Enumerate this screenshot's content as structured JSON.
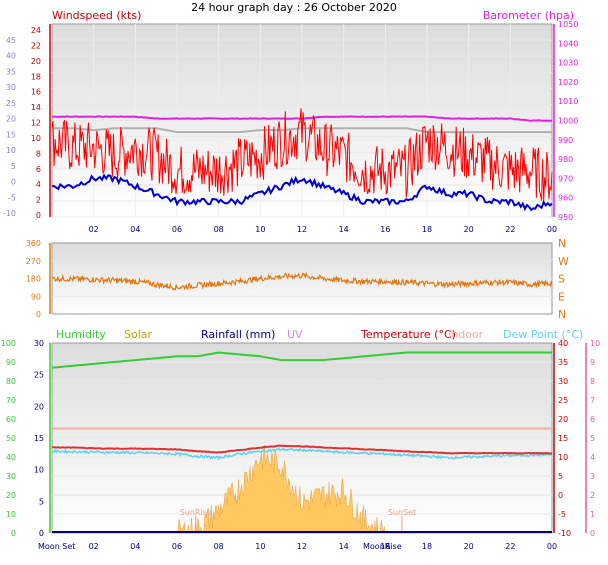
{
  "title": "24 hour graph day : 26 October 2020",
  "colors": {
    "wind": "#ff0000",
    "wind_avg": "#0000cc",
    "baro": "#e020e0",
    "baro_ref": "#b0b0b0",
    "dir": "#e07810",
    "humidity": "#33cc33",
    "solar": "#c8a000",
    "solar_fill": "#ffc860",
    "rain": "#000080",
    "uv": "#e080e0",
    "temp": "#e03030",
    "indoor": "#f0b0a0",
    "dew": "#60d0f0",
    "axis_left_top": "#cc0000",
    "axis_left_bottom": "#33cc33",
    "axis_right_bottom_inner": "#cc0000",
    "axis_right_bottom_outer": "#e060a0"
  },
  "x_ticks": [
    "02",
    "04",
    "06",
    "08",
    "10",
    "12",
    "14",
    "16",
    "18",
    "20",
    "22",
    "00"
  ],
  "moon_labels": {
    "left": "Moon Set",
    "right": "MoonRise"
  },
  "chart_data": [
    {
      "type": "line",
      "name": "wind-barometer",
      "left_title": "Windspeed (kts)",
      "right_title": "Barometer (hpa)",
      "left_ticks": [
        "24",
        "22",
        "20",
        "18",
        "16",
        "14",
        "12",
        "10",
        "8",
        "6",
        "4",
        "2",
        "0"
      ],
      "left_outer_ticks": [
        "45",
        "40",
        "35",
        "30",
        "25",
        "20",
        "15",
        "10",
        "5",
        "0",
        "-5",
        "-10"
      ],
      "right_ticks": [
        "1050",
        "1040",
        "1030",
        "1020",
        "1010",
        "1000",
        "990",
        "980",
        "970",
        "960",
        "950"
      ],
      "ylim_left": [
        0,
        25
      ],
      "ylim_right": [
        950,
        1050
      ],
      "hours": [
        0,
        1,
        2,
        3,
        4,
        5,
        6,
        7,
        8,
        9,
        10,
        11,
        12,
        13,
        14,
        15,
        16,
        17,
        18,
        19,
        20,
        21,
        22,
        23,
        24
      ],
      "series": [
        {
          "values": [
            10,
            9,
            9,
            8,
            9,
            8,
            6,
            6,
            6,
            7,
            8,
            10,
            11,
            9,
            8,
            6,
            6,
            6,
            10,
            9,
            8,
            7,
            6,
            6,
            5
          ]
        },
        {
          "values": [
            4,
            4,
            5,
            5,
            4,
            3,
            2,
            2,
            2,
            2,
            3,
            4,
            5,
            4,
            3,
            2,
            2,
            2,
            4,
            3,
            3,
            2,
            2,
            1,
            2
          ]
        },
        {
          "values": [
            1002,
            1002,
            1002,
            1002,
            1002,
            1001,
            1001,
            1001,
            1001,
            1001,
            1001,
            1001,
            1001,
            1002,
            1002,
            1002,
            1002,
            1002,
            1002,
            1001,
            1001,
            1001,
            1001,
            1000,
            1000
          ]
        },
        {
          "values": [
            996,
            996,
            995,
            996,
            996,
            996,
            994,
            994,
            994,
            994,
            995,
            995,
            996,
            996,
            996,
            996,
            996,
            996,
            994,
            994,
            994,
            994,
            994,
            994,
            994
          ]
        }
      ]
    },
    {
      "type": "line",
      "name": "wind-direction",
      "left_ticks": [
        "360",
        "270",
        "180",
        "90",
        "0"
      ],
      "right_labels": [
        "N",
        "W",
        "S",
        "E",
        "N"
      ],
      "ylim": [
        0,
        360
      ],
      "hours": [
        0,
        1,
        2,
        3,
        4,
        5,
        6,
        7,
        8,
        9,
        10,
        11,
        12,
        13,
        14,
        15,
        16,
        17,
        18,
        19,
        20,
        21,
        22,
        23,
        24
      ],
      "series": [
        {
          "values": [
            180,
            178,
            175,
            170,
            165,
            150,
            135,
            145,
            155,
            165,
            180,
            190,
            195,
            180,
            170,
            165,
            165,
            160,
            155,
            150,
            155,
            160,
            160,
            150,
            155
          ]
        }
      ]
    },
    {
      "type": "line",
      "name": "temperature-humidity-solar",
      "legend": [
        "Humidity",
        "Solar",
        "Rainfall (mm)",
        "UV",
        "Temperature (°C)",
        "Indoor",
        "Dew Point (°C)"
      ],
      "left_outer_ticks": [
        "100",
        "90",
        "80",
        "70",
        "60",
        "50",
        "40",
        "30",
        "20",
        "10",
        "0"
      ],
      "left_inner_ticks": [
        "30",
        "25",
        "20",
        "15",
        "10",
        "5",
        "0"
      ],
      "right_inner_ticks": [
        "40",
        "35",
        "30",
        "25",
        "20",
        "15",
        "10",
        "5",
        "0",
        "-5",
        "-10"
      ],
      "right_outer_ticks": [
        "10",
        "9",
        "8",
        "7",
        "6",
        "5",
        "4",
        "3",
        "2",
        "1",
        "0"
      ],
      "ylim_temp": [
        -10,
        40
      ],
      "ylim_humidity": [
        0,
        100
      ],
      "hours": [
        0,
        1,
        2,
        3,
        4,
        5,
        6,
        7,
        8,
        9,
        10,
        11,
        12,
        13,
        14,
        15,
        16,
        17,
        18,
        19,
        20,
        21,
        22,
        23,
        24
      ],
      "sun_labels": {
        "rise": "SunRise",
        "set": "SunSet"
      },
      "sunrise_hour": 6.9,
      "sunset_hour": 16.8,
      "series": [
        {
          "values": [
            87,
            88,
            89,
            90,
            91,
            92,
            93,
            93,
            95,
            94,
            93,
            91,
            91,
            91,
            92,
            93,
            94,
            95,
            95,
            95,
            95,
            95,
            95,
            95,
            95
          ]
        },
        {
          "values": [
            12.5,
            12.5,
            12.3,
            12.2,
            12.2,
            12.1,
            12,
            11.5,
            11.2,
            11.8,
            12.5,
            13,
            12.8,
            12.5,
            12.3,
            12,
            11.8,
            11.5,
            11.3,
            11,
            11,
            11,
            11,
            11,
            11
          ]
        },
        {
          "values": [
            11.5,
            11.4,
            11.3,
            11.2,
            11.1,
            11,
            10.8,
            10.2,
            9.8,
            10.8,
            11.5,
            12,
            11.8,
            11.5,
            11.2,
            11,
            10.8,
            10.5,
            10.2,
            9.8,
            10,
            10.2,
            10.4,
            10.5,
            10.6
          ]
        },
        {
          "values": [
            17.5,
            17.5,
            17.5,
            17.5,
            17.5,
            17.5,
            17.5,
            17.5,
            17.5,
            17.5,
            17.5,
            17.5,
            17.5,
            17.5,
            17.5,
            17.5,
            17.5,
            17.5,
            17.5,
            17.5,
            17.5,
            17.5,
            17.5,
            17.5,
            17.5
          ]
        },
        {
          "values": [
            0,
            0,
            0,
            0,
            0,
            0,
            0,
            0.3,
            1.5,
            3,
            5,
            4.5,
            2,
            2.5,
            2.8,
            0.8,
            0,
            0,
            0,
            0,
            0,
            0,
            0,
            0,
            0
          ]
        }
      ]
    }
  ]
}
